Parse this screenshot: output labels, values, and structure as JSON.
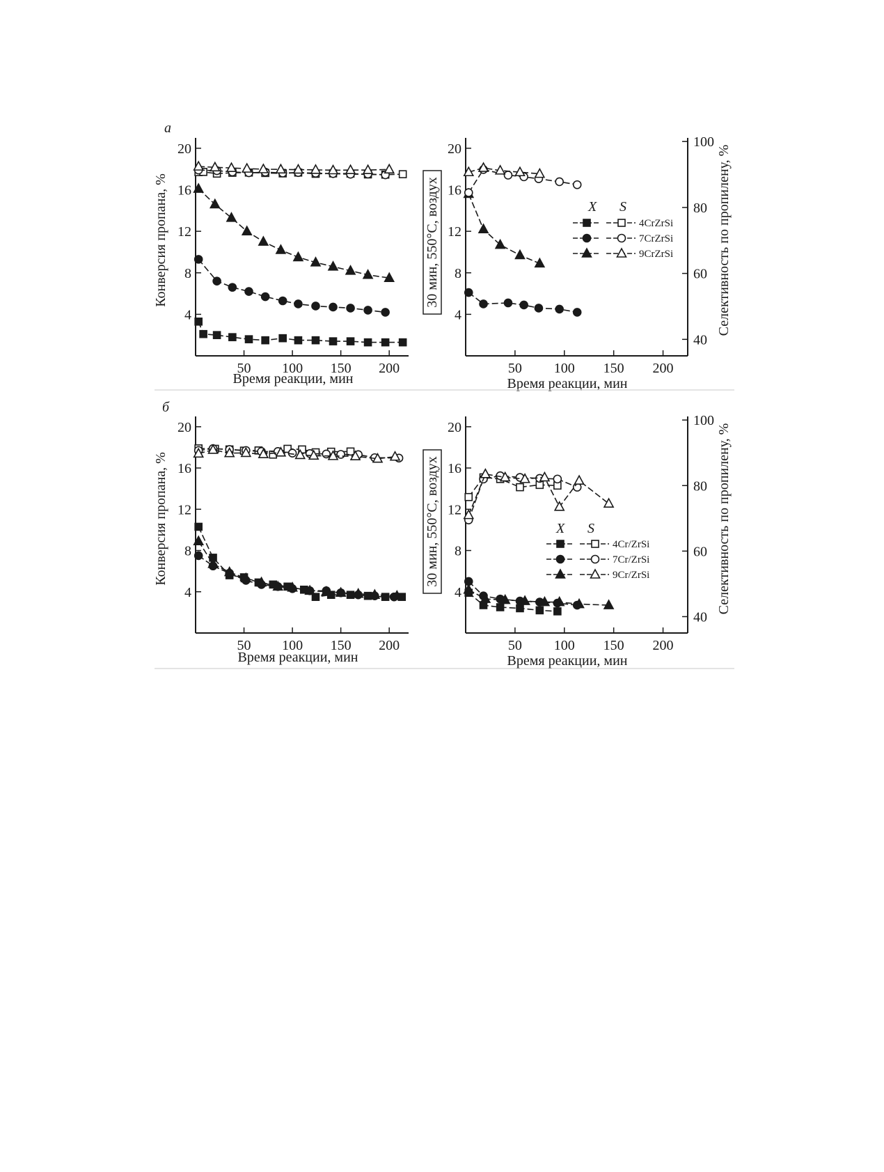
{
  "figure": {
    "panels": [
      {
        "letter": "а",
        "legend": {
          "head_x": "X",
          "head_s": "S",
          "items": [
            "4CrZrSi",
            "7CrZrSi",
            "9CrZrSi"
          ]
        }
      },
      {
        "letter": "б",
        "legend": {
          "head_x": "X",
          "head_s": "S",
          "items": [
            "4Cr/ZrSi",
            "7Cr/ZrSi",
            "9Cr/ZrSi"
          ]
        }
      }
    ],
    "separator_label": "30 мин, 550°С, воздух",
    "ylabel_left": "Конверсия пропана, %",
    "ylabel_right": "Селективность по пропилену, %",
    "xlabel": "Время реакции, мин"
  },
  "chart_data": [
    {
      "type": "line",
      "panel": "а",
      "chart": "left",
      "xlabel": "Время реакции, мин",
      "ylabel": "Конверсия пропана, %",
      "xlim": [
        0,
        220
      ],
      "ylim": [
        0,
        21
      ],
      "xticks": [
        50,
        100,
        150,
        200
      ],
      "yticks": [
        4,
        8,
        12,
        16,
        20
      ],
      "series": [
        {
          "name": "4CrZrSi",
          "metric": "X",
          "marker": "square",
          "filled": true,
          "x": [
            3,
            8,
            22,
            38,
            55,
            72,
            90,
            106,
            124,
            142,
            160,
            178,
            196,
            214
          ],
          "y": [
            3.3,
            2.1,
            2.0,
            1.8,
            1.6,
            1.5,
            1.7,
            1.5,
            1.5,
            1.4,
            1.4,
            1.3,
            1.3,
            1.3
          ]
        },
        {
          "name": "7CrZrSi",
          "metric": "X",
          "marker": "circle",
          "filled": true,
          "x": [
            3,
            22,
            38,
            55,
            72,
            90,
            106,
            124,
            142,
            160,
            178,
            196
          ],
          "y": [
            9.3,
            7.2,
            6.6,
            6.2,
            5.7,
            5.3,
            5.0,
            4.8,
            4.7,
            4.6,
            4.4,
            4.2
          ]
        },
        {
          "name": "9CrZrSi",
          "metric": "X",
          "marker": "triangle",
          "filled": true,
          "x": [
            3,
            20,
            37,
            53,
            70,
            88,
            106,
            124,
            142,
            160,
            178,
            200
          ],
          "y": [
            16.1,
            14.6,
            13.3,
            12.0,
            11.0,
            10.2,
            9.5,
            9.0,
            8.6,
            8.2,
            7.8,
            7.5
          ]
        },
        {
          "name": "4CrZrSi",
          "metric": "S",
          "marker": "square",
          "filled": false,
          "x": [
            3,
            8,
            22,
            38,
            55,
            72,
            90,
            106,
            124,
            142,
            160,
            178,
            196,
            214
          ],
          "y": [
            88.5,
            88.6,
            87.8,
            88.2,
            88.3,
            88.1,
            87.9,
            88.3,
            87.7,
            87.9,
            87.8,
            87.4,
            87.3,
            87.5
          ]
        },
        {
          "name": "7CrZrSi",
          "metric": "S",
          "marker": "circle",
          "filled": false,
          "x": [
            3,
            22,
            38,
            55,
            72,
            90,
            106,
            124,
            142,
            160,
            178,
            196
          ],
          "y": [
            89.5,
            89.2,
            88.6,
            88.2,
            88.5,
            88.1,
            88.3,
            88.0,
            87.8,
            87.5,
            87.6,
            87.2
          ]
        },
        {
          "name": "9CrZrSi",
          "metric": "S",
          "marker": "triangle",
          "filled": false,
          "x": [
            3,
            20,
            37,
            53,
            70,
            88,
            106,
            124,
            142,
            160,
            178,
            200
          ],
          "y": [
            91.2,
            90.8,
            90.5,
            90.2,
            89.9,
            89.8,
            89.7,
            89.6,
            89.4,
            89.5,
            89.5,
            89.8
          ]
        }
      ]
    },
    {
      "type": "line",
      "panel": "а",
      "chart": "right",
      "xlabel": "Время реакции, мин",
      "ylabel": "Селективность по пропилену, %",
      "xlim": [
        0,
        225
      ],
      "ylim": [
        0,
        21
      ],
      "y2lim": [
        35,
        101.1
      ],
      "xticks": [
        50,
        100,
        150,
        200
      ],
      "yticks": [
        4,
        8,
        12,
        16,
        20
      ],
      "y2ticks": [
        40,
        60,
        80,
        100
      ],
      "series": [
        {
          "name": "7CrZrSi",
          "metric": "X",
          "marker": "circle",
          "filled": true,
          "x": [
            3,
            18,
            43,
            59,
            74,
            95,
            113
          ],
          "y": [
            6.1,
            5.0,
            5.1,
            4.9,
            4.6,
            4.5,
            4.2
          ]
        },
        {
          "name": "9CrZrSi",
          "metric": "X",
          "marker": "triangle",
          "filled": true,
          "x": [
            3,
            18,
            35,
            55,
            75
          ],
          "y": [
            15.6,
            12.2,
            10.7,
            9.7,
            8.9
          ]
        },
        {
          "name": "7CrZrSi",
          "metric": "S",
          "marker": "circle",
          "filled": false,
          "x": [
            3,
            18,
            43,
            59,
            74,
            95,
            113
          ],
          "y": [
            84.5,
            91.5,
            89.8,
            89.3,
            88.7,
            87.8,
            86.9
          ]
        },
        {
          "name": "9CrZrSi",
          "metric": "S",
          "marker": "triangle",
          "filled": false,
          "x": [
            3,
            18,
            35,
            55,
            75
          ],
          "y": [
            90.7,
            92.0,
            91.2,
            90.7,
            90.2
          ]
        }
      ]
    },
    {
      "type": "line",
      "panel": "б",
      "chart": "left",
      "xlabel": "Время реакции, мин",
      "ylabel": "Конверсия пропана, %",
      "xlim": [
        0,
        220
      ],
      "ylim": [
        0,
        21
      ],
      "xticks": [
        50,
        100,
        150,
        200
      ],
      "yticks": [
        4,
        8,
        12,
        16,
        20
      ],
      "series": [
        {
          "name": "4Cr/ZrSi",
          "metric": "X",
          "marker": "square",
          "filled": true,
          "x": [
            3,
            18,
            35,
            50,
            65,
            80,
            95,
            112,
            124,
            140,
            160,
            178,
            196,
            213
          ],
          "y": [
            10.3,
            7.3,
            5.6,
            5.4,
            4.9,
            4.7,
            4.5,
            4.2,
            3.5,
            3.7,
            3.7,
            3.6,
            3.5,
            3.5
          ]
        },
        {
          "name": "7Cr/ZrSi",
          "metric": "X",
          "marker": "circle",
          "filled": true,
          "x": [
            3,
            18,
            35,
            52,
            68,
            85,
            100,
            118,
            135,
            150,
            168,
            185,
            205
          ],
          "y": [
            7.5,
            6.5,
            5.8,
            5.1,
            4.7,
            4.5,
            4.3,
            4.1,
            4.1,
            3.9,
            3.7,
            3.6,
            3.5
          ]
        },
        {
          "name": "9Cr/ZrSi",
          "metric": "X",
          "marker": "triangle",
          "filled": true,
          "x": [
            3,
            18,
            35,
            52,
            68,
            85,
            100,
            118,
            135,
            150,
            168,
            185,
            208
          ],
          "y": [
            8.9,
            6.7,
            5.9,
            5.3,
            4.9,
            4.5,
            4.4,
            4.1,
            4.0,
            3.9,
            3.8,
            3.7,
            3.6
          ]
        },
        {
          "name": "4Cr/ZrSi",
          "metric": "S",
          "marker": "square",
          "filled": false,
          "x": [
            3,
            20,
            35,
            50,
            65,
            80,
            95,
            110,
            124,
            140,
            160
          ],
          "y": [
            89.5,
            89.3,
            89.0,
            88.4,
            88.5,
            86.5,
            89.3,
            89.0,
            87.6,
            87.9,
            88.0
          ]
        },
        {
          "name": "7Cr/ZrSi",
          "metric": "S",
          "marker": "circle",
          "filled": false,
          "x": [
            3,
            18,
            35,
            52,
            68,
            85,
            100,
            118,
            135,
            150,
            168,
            185,
            210
          ],
          "y": [
            88.5,
            89.4,
            89.0,
            88.5,
            88.0,
            88.0,
            87.2,
            87.0,
            86.8,
            86.6,
            86.5,
            85.0,
            84.8
          ]
        },
        {
          "name": "9Cr/ZrSi",
          "metric": "S",
          "marker": "triangle",
          "filled": false,
          "x": [
            3,
            18,
            35,
            52,
            70,
            88,
            108,
            122,
            142,
            165,
            188,
            206
          ],
          "y": [
            87.0,
            88.8,
            87.2,
            87.3,
            86.7,
            87.5,
            86.3,
            86.0,
            85.8,
            85.7,
            84.5,
            85.5
          ]
        }
      ]
    },
    {
      "type": "line",
      "panel": "б",
      "chart": "right",
      "xlabel": "Время реакции, мин",
      "ylabel": "Селективность по пропилену, %",
      "xlim": [
        0,
        225
      ],
      "ylim": [
        0,
        21
      ],
      "y2lim": [
        35,
        101.1
      ],
      "xticks": [
        50,
        100,
        150,
        200
      ],
      "yticks": [
        4,
        8,
        12,
        16,
        20
      ],
      "y2ticks": [
        40,
        60,
        80,
        100
      ],
      "series": [
        {
          "name": "4Cr/ZrSi",
          "metric": "X",
          "marker": "square",
          "filled": true,
          "x": [
            3,
            18,
            35,
            55,
            75,
            93
          ],
          "y": [
            3.9,
            2.7,
            2.5,
            2.4,
            2.2,
            2.1
          ]
        },
        {
          "name": "7Cr/ZrSi",
          "metric": "X",
          "marker": "circle",
          "filled": true,
          "x": [
            3,
            18,
            35,
            55,
            75,
            93,
            113
          ],
          "y": [
            5.0,
            3.6,
            3.3,
            3.1,
            3.0,
            2.9,
            2.7
          ]
        },
        {
          "name": "9Cr/ZrSi",
          "metric": "X",
          "marker": "triangle",
          "filled": true,
          "x": [
            3,
            20,
            40,
            60,
            80,
            95,
            115,
            145
          ],
          "y": [
            4.2,
            3.3,
            3.2,
            3.1,
            3.0,
            3.0,
            2.8,
            2.7
          ]
        },
        {
          "name": "4Cr/ZrSi",
          "metric": "S",
          "marker": "square",
          "filled": false,
          "x": [
            3,
            18,
            35,
            55,
            75,
            93
          ],
          "y": [
            76.5,
            82.5,
            82.0,
            79.5,
            80.2,
            80.0
          ]
        },
        {
          "name": "7Cr/ZrSi",
          "metric": "S",
          "marker": "circle",
          "filled": false,
          "x": [
            3,
            18,
            35,
            55,
            75,
            93,
            113
          ],
          "y": [
            69.5,
            82.0,
            83.0,
            82.5,
            82.2,
            82.0,
            79.5
          ]
        },
        {
          "name": "9Cr/ZrSi",
          "metric": "S",
          "marker": "triangle",
          "filled": false,
          "x": [
            3,
            20,
            40,
            60,
            80,
            95,
            115,
            145
          ],
          "y": [
            71.0,
            83.5,
            82.5,
            82.0,
            82.5,
            73.5,
            81.5,
            74.5
          ]
        }
      ]
    }
  ]
}
